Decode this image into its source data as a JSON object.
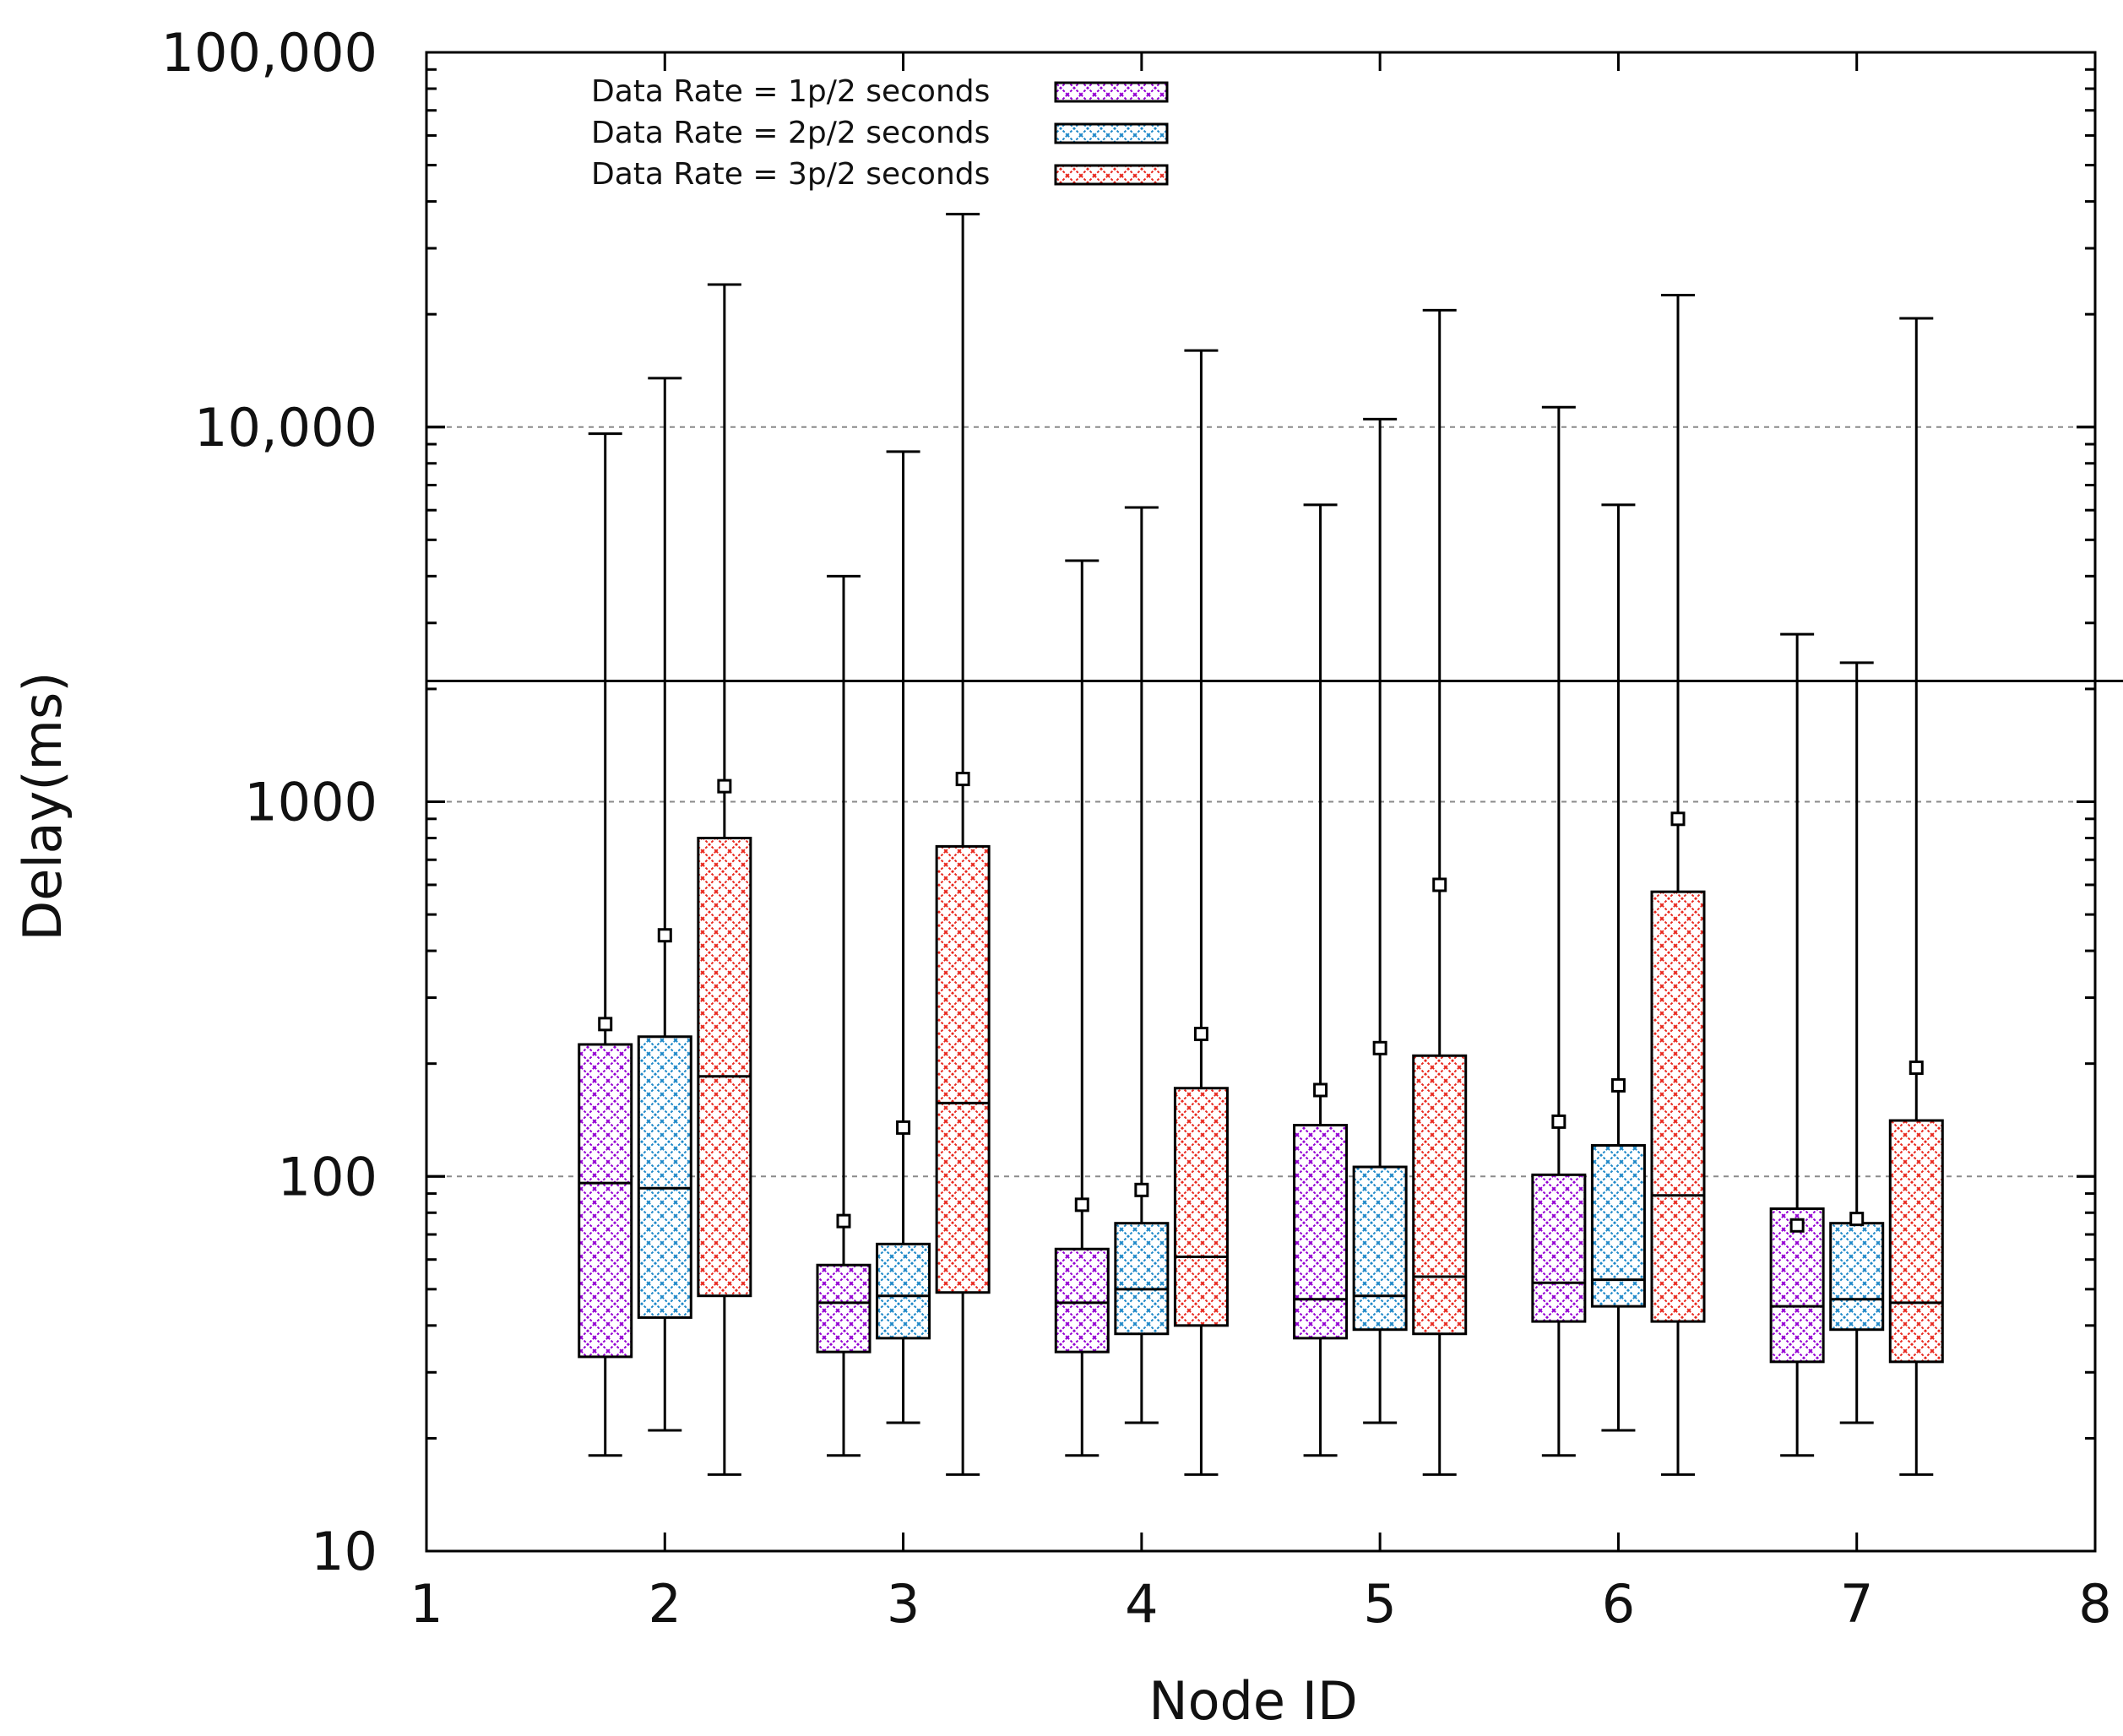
{
  "chart_data": {
    "type": "boxplot",
    "title": "",
    "xlabel": "Node ID",
    "ylabel": "Delay(ms)",
    "x_scale": "linear",
    "y_scale": "log",
    "xlim": [
      1,
      8
    ],
    "ylim": [
      10,
      100000
    ],
    "x_ticks": [
      {
        "value": 1,
        "label": "1"
      },
      {
        "value": 2,
        "label": "2"
      },
      {
        "value": 3,
        "label": "3"
      },
      {
        "value": 4,
        "label": "4"
      },
      {
        "value": 5,
        "label": "5"
      },
      {
        "value": 6,
        "label": "6"
      },
      {
        "value": 7,
        "label": "7"
      },
      {
        "value": 8,
        "label": "8"
      }
    ],
    "y_ticks": [
      {
        "value": 10,
        "label": "10"
      },
      {
        "value": 100,
        "label": "100"
      },
      {
        "value": 1000,
        "label": "1000"
      },
      {
        "value": 10000,
        "label": "10,000"
      },
      {
        "value": 100000,
        "label": "100,000"
      }
    ],
    "gridlines_y": [
      100,
      1000,
      10000
    ],
    "reference_line_y": 2100,
    "legend_position": "top-left",
    "series": [
      {
        "name": "Data Rate = 1p/2 seconds",
        "color": "#9400d3",
        "offset": -0.25,
        "boxes": [
          {
            "node": 2,
            "min": 18,
            "q1": 33,
            "median": 96,
            "q3": 225,
            "max": 9600,
            "mean": 255
          },
          {
            "node": 3,
            "min": 18,
            "q1": 34,
            "median": 46,
            "q3": 58,
            "max": 4000,
            "mean": 76
          },
          {
            "node": 4,
            "min": 18,
            "q1": 34,
            "median": 46,
            "q3": 64,
            "max": 4400,
            "mean": 84
          },
          {
            "node": 5,
            "min": 18,
            "q1": 37,
            "median": 47,
            "q3": 137,
            "max": 6200,
            "mean": 170
          },
          {
            "node": 6,
            "min": 18,
            "q1": 41,
            "median": 52,
            "q3": 101,
            "max": 11300,
            "mean": 140
          },
          {
            "node": 7,
            "min": 18,
            "q1": 32,
            "median": 45,
            "q3": 82,
            "max": 2800,
            "mean": 74
          }
        ]
      },
      {
        "name": "Data Rate = 2p/2 seconds",
        "color": "#1e88c8",
        "offset": 0,
        "boxes": [
          {
            "node": 2,
            "min": 21,
            "q1": 42,
            "median": 93,
            "q3": 236,
            "max": 13500,
            "mean": 440
          },
          {
            "node": 3,
            "min": 22,
            "q1": 37,
            "median": 48,
            "q3": 66,
            "max": 8600,
            "mean": 135
          },
          {
            "node": 4,
            "min": 22,
            "q1": 38,
            "median": 50,
            "q3": 75,
            "max": 6100,
            "mean": 92
          },
          {
            "node": 5,
            "min": 22,
            "q1": 39,
            "median": 48,
            "q3": 106,
            "max": 10500,
            "mean": 220
          },
          {
            "node": 6,
            "min": 21,
            "q1": 45,
            "median": 53,
            "q3": 121,
            "max": 6200,
            "mean": 175
          },
          {
            "node": 7,
            "min": 22,
            "q1": 39,
            "median": 47,
            "q3": 75,
            "max": 2350,
            "mean": 77
          }
        ]
      },
      {
        "name": "Data Rate = 3p/2 seconds",
        "color": "#e8281e",
        "offset": 0.25,
        "boxes": [
          {
            "node": 2,
            "min": 16,
            "q1": 48,
            "median": 185,
            "q3": 800,
            "max": 24000,
            "mean": 1100
          },
          {
            "node": 3,
            "min": 16,
            "q1": 49,
            "median": 157,
            "q3": 760,
            "max": 37000,
            "mean": 1150
          },
          {
            "node": 4,
            "min": 16,
            "q1": 40,
            "median": 61,
            "q3": 172,
            "max": 16000,
            "mean": 240
          },
          {
            "node": 5,
            "min": 16,
            "q1": 38,
            "median": 54,
            "q3": 210,
            "max": 20500,
            "mean": 600
          },
          {
            "node": 6,
            "min": 16,
            "q1": 41,
            "median": 89,
            "q3": 575,
            "max": 22500,
            "mean": 900
          },
          {
            "node": 7,
            "min": 16,
            "q1": 32,
            "median": 46,
            "q3": 141,
            "max": 19500,
            "mean": 195
          }
        ]
      }
    ]
  }
}
